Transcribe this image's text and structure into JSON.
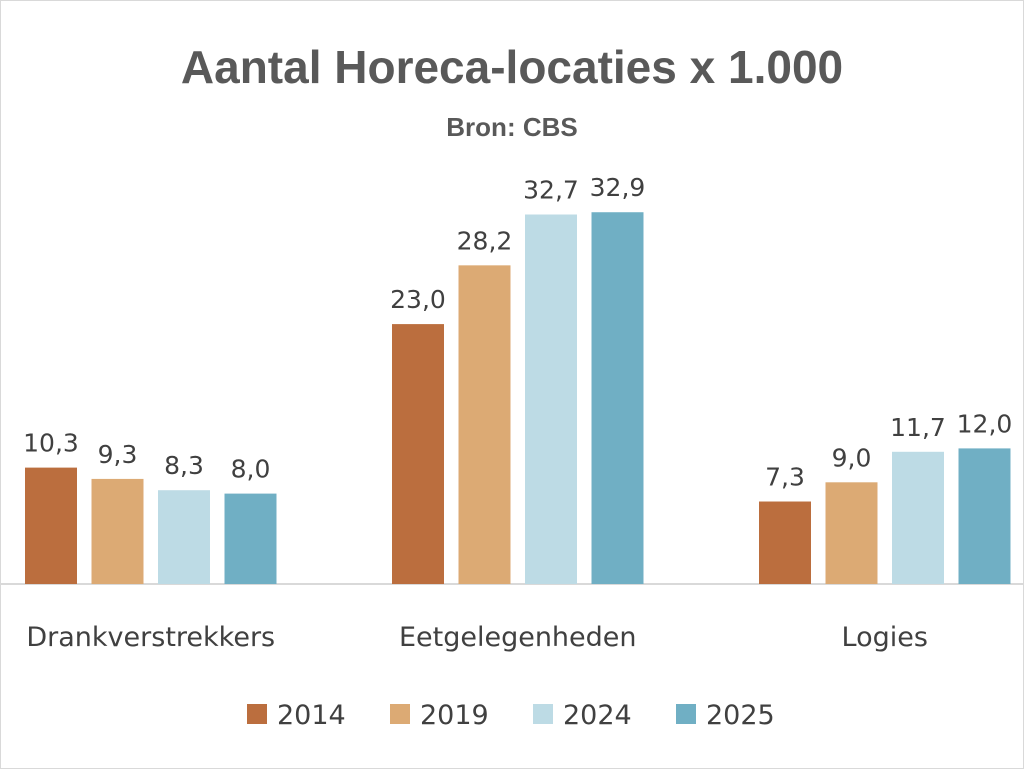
{
  "chart_data": {
    "type": "bar",
    "title": "Aantal Horeca-locaties x 1.000",
    "subtitle": "Bron: CBS",
    "categories": [
      "Drankverstrekkers",
      "Eetgelegenheden",
      "Logies"
    ],
    "series": [
      {
        "name": "2014",
        "color": "#bb6e3e",
        "values": [
          10.3,
          23.0,
          7.3
        ],
        "labels": [
          "10,3",
          "23,0",
          "7,3"
        ]
      },
      {
        "name": "2019",
        "color": "#dcaa74",
        "values": [
          9.3,
          28.2,
          9.0
        ],
        "labels": [
          "9,3",
          "28,2",
          "9,0"
        ]
      },
      {
        "name": "2024",
        "color": "#bddbe5",
        "values": [
          8.3,
          32.7,
          11.7
        ],
        "labels": [
          "8,3",
          "32,7",
          "11,7"
        ]
      },
      {
        "name": "2025",
        "color": "#70afc4",
        "values": [
          8.0,
          32.9,
          12.0
        ],
        "labels": [
          "8,0",
          "32,9",
          "12,0"
        ]
      }
    ],
    "ylim": [
      0,
      33
    ],
    "grid": false,
    "legend": "bottom"
  }
}
